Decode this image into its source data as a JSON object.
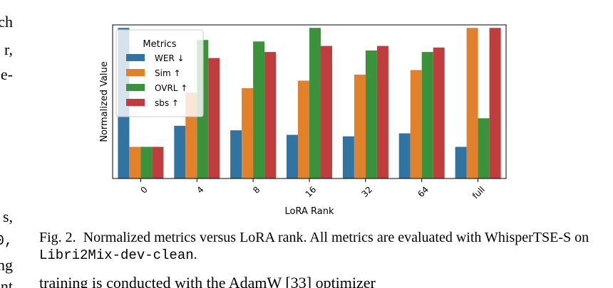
{
  "left_column_fragments": [
    "ch",
    "r,",
    "e-",
    "s,",
    "0,",
    "ng",
    "nt"
  ],
  "chart_data": {
    "type": "bar",
    "xlabel": "LoRA Rank",
    "ylabel": "Normalized Value",
    "categories": [
      "0",
      "4",
      "8",
      "16",
      "32",
      "64",
      "full"
    ],
    "ylim": [
      0,
      1.02
    ],
    "yticks_shown": false,
    "grid": false,
    "legend": {
      "title": "Metrics",
      "placement": "top-left",
      "entries": [
        "WER ↓",
        "Sim ↑",
        "OVRL ↑",
        "sbs ↑"
      ]
    },
    "series": [
      {
        "name": "WER ↓",
        "color": "#3274a1",
        "values": [
          1.0,
          0.35,
          0.32,
          0.29,
          0.28,
          0.3,
          0.21
        ]
      },
      {
        "name": "Sim ↑",
        "color": "#e1812c",
        "values": [
          0.21,
          0.57,
          0.6,
          0.65,
          0.69,
          0.72,
          1.0
        ]
      },
      {
        "name": "OVRL ↑",
        "color": "#3a923a",
        "values": [
          0.21,
          0.92,
          0.91,
          1.0,
          0.85,
          0.84,
          0.4
        ]
      },
      {
        "name": "sbs ↑",
        "color": "#c03d3e",
        "values": [
          0.21,
          0.8,
          0.84,
          0.88,
          0.88,
          0.87,
          1.0
        ]
      }
    ]
  },
  "caption": {
    "label": "Fig. 2.",
    "text": "Normalized metrics versus LoRA rank. All metrics are evaluated with WhisperTSE-S on ",
    "code": "Libri2Mix-dev-clean",
    "end": "."
  },
  "next_line": "training is conducted with the AdamW [33] optimizer"
}
